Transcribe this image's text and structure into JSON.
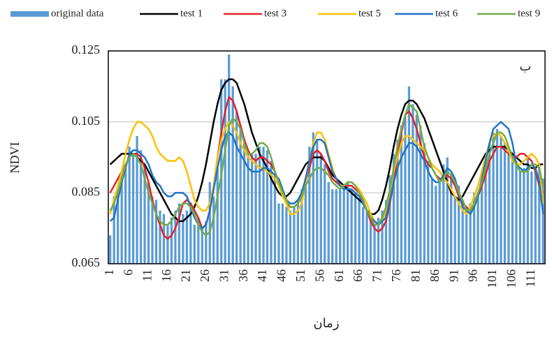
{
  "chart_data": {
    "type": "bar",
    "ylabel": "NDVI",
    "xlabel": "زمان",
    "annotation": "ب",
    "categories": [
      "1",
      null,
      null,
      null,
      null,
      "6",
      null,
      null,
      null,
      null,
      "11",
      null,
      null,
      null,
      null,
      "16",
      null,
      null,
      null,
      null,
      "21",
      null,
      null,
      null,
      null,
      "26",
      null,
      null,
      null,
      null,
      "31",
      null,
      null,
      null,
      null,
      "36",
      null,
      null,
      null,
      null,
      "41",
      null,
      null,
      null,
      null,
      "46",
      null,
      null,
      null,
      null,
      "51",
      null,
      null,
      null,
      null,
      "56",
      null,
      null,
      null,
      null,
      "61",
      null,
      null,
      null,
      null,
      "66",
      null,
      null,
      null,
      null,
      "71",
      null,
      null,
      null,
      null,
      "76",
      null,
      null,
      null,
      null,
      "81",
      null,
      null,
      null,
      null,
      "86",
      null,
      null,
      null,
      null,
      "91",
      null,
      null,
      null,
      null,
      "96",
      null,
      null,
      null,
      null,
      "101",
      null,
      null,
      null,
      null,
      "106",
      null,
      null,
      null,
      null,
      "111",
      null,
      null,
      null
    ],
    "ylim": [
      0.065,
      0.125
    ],
    "yticks": [
      0.065,
      0.085,
      0.105,
      0.125
    ],
    "grid": true,
    "legend": "top",
    "series": [
      {
        "name": "original data",
        "type": "bar",
        "color": "#5b9bd5",
        "values": [
          0.073,
          0.084,
          0.086,
          0.09,
          0.092,
          0.098,
          0.096,
          0.101,
          0.097,
          0.093,
          0.088,
          0.084,
          0.083,
          0.08,
          0.079,
          0.076,
          0.078,
          0.08,
          0.082,
          0.079,
          0.08,
          0.082,
          0.076,
          0.078,
          0.075,
          0.077,
          0.088,
          0.084,
          0.092,
          0.117,
          0.117,
          0.124,
          0.115,
          0.108,
          0.104,
          0.099,
          0.097,
          0.096,
          0.096,
          0.098,
          0.098,
          0.097,
          0.094,
          0.09,
          0.082,
          0.082,
          0.081,
          0.08,
          0.081,
          0.083,
          0.086,
          0.089,
          0.098,
          0.102,
          0.1,
          0.096,
          0.093,
          0.088,
          0.086,
          0.086,
          0.086,
          0.087,
          0.088,
          0.086,
          0.085,
          0.083,
          0.081,
          0.08,
          0.078,
          0.076,
          0.078,
          0.08,
          0.083,
          0.09,
          0.096,
          0.1,
          0.104,
          0.107,
          0.115,
          0.11,
          0.107,
          0.104,
          0.099,
          0.094,
          0.089,
          0.087,
          0.088,
          0.093,
          0.095,
          0.09,
          0.084,
          0.087,
          0.083,
          0.081,
          0.082,
          0.085,
          0.084,
          0.088,
          0.093,
          0.099,
          0.102,
          0.103,
          0.101,
          0.099,
          0.096,
          0.096,
          0.094,
          0.091,
          0.092,
          0.095,
          0.091,
          0.092,
          0.093,
          0.089
        ]
      },
      {
        "name": "test 1",
        "type": "line",
        "color": "#000000",
        "values": [
          0.093,
          0.094,
          0.095,
          0.096,
          0.096,
          0.096,
          0.096,
          0.095,
          0.094,
          0.093,
          0.091,
          0.089,
          0.087,
          0.085,
          0.083,
          0.081,
          0.079,
          0.078,
          0.077,
          0.077,
          0.078,
          0.079,
          0.081,
          0.084,
          0.088,
          0.093,
          0.099,
          0.105,
          0.11,
          0.114,
          0.116,
          0.117,
          0.117,
          0.116,
          0.113,
          0.11,
          0.106,
          0.102,
          0.099,
          0.096,
          0.094,
          0.092,
          0.089,
          0.087,
          0.085,
          0.084,
          0.084,
          0.085,
          0.087,
          0.089,
          0.091,
          0.093,
          0.094,
          0.095,
          0.095,
          0.095,
          0.094,
          0.092,
          0.09,
          0.089,
          0.088,
          0.087,
          0.086,
          0.085,
          0.084,
          0.083,
          0.082,
          0.08,
          0.079,
          0.079,
          0.08,
          0.083,
          0.087,
          0.092,
          0.098,
          0.103,
          0.107,
          0.11,
          0.111,
          0.111,
          0.11,
          0.108,
          0.106,
          0.103,
          0.1,
          0.097,
          0.094,
          0.091,
          0.088,
          0.085,
          0.084,
          0.083,
          0.084,
          0.086,
          0.088,
          0.09,
          0.092,
          0.094,
          0.096,
          0.097,
          0.098,
          0.098,
          0.098,
          0.098,
          0.097,
          0.096,
          0.095,
          0.094,
          0.093,
          0.093,
          0.092,
          0.092,
          0.093,
          0.093
        ]
      },
      {
        "name": "test 3",
        "type": "line",
        "color": "#e3222b",
        "values": [
          0.085,
          0.087,
          0.089,
          0.091,
          0.093,
          0.095,
          0.096,
          0.096,
          0.095,
          0.092,
          0.088,
          0.083,
          0.079,
          0.076,
          0.073,
          0.072,
          0.073,
          0.075,
          0.078,
          0.082,
          0.083,
          0.082,
          0.08,
          0.078,
          0.075,
          0.076,
          0.08,
          0.087,
          0.095,
          0.102,
          0.108,
          0.112,
          0.111,
          0.108,
          0.104,
          0.1,
          0.097,
          0.095,
          0.094,
          0.095,
          0.095,
          0.094,
          0.093,
          0.091,
          0.088,
          0.085,
          0.082,
          0.081,
          0.081,
          0.082,
          0.084,
          0.088,
          0.092,
          0.096,
          0.097,
          0.096,
          0.094,
          0.091,
          0.089,
          0.088,
          0.087,
          0.087,
          0.087,
          0.087,
          0.086,
          0.085,
          0.083,
          0.08,
          0.077,
          0.075,
          0.074,
          0.075,
          0.077,
          0.082,
          0.088,
          0.095,
          0.102,
          0.107,
          0.108,
          0.106,
          0.103,
          0.099,
          0.095,
          0.093,
          0.092,
          0.09,
          0.089,
          0.089,
          0.09,
          0.089,
          0.087,
          0.084,
          0.082,
          0.081,
          0.08,
          0.081,
          0.084,
          0.087,
          0.09,
          0.094,
          0.096,
          0.098,
          0.098,
          0.097,
          0.096,
          0.095,
          0.095,
          0.096,
          0.096,
          0.095,
          0.094,
          0.091,
          0.087,
          0.085
        ]
      },
      {
        "name": "test 5",
        "type": "line",
        "color": "#ffc000",
        "values": [
          0.079,
          0.083,
          0.087,
          0.091,
          0.096,
          0.1,
          0.103,
          0.105,
          0.105,
          0.104,
          0.103,
          0.101,
          0.098,
          0.096,
          0.095,
          0.094,
          0.094,
          0.094,
          0.095,
          0.094,
          0.091,
          0.087,
          0.083,
          0.081,
          0.08,
          0.08,
          0.082,
          0.087,
          0.095,
          0.1,
          0.103,
          0.105,
          0.104,
          0.102,
          0.099,
          0.097,
          0.095,
          0.094,
          0.093,
          0.092,
          0.092,
          0.091,
          0.09,
          0.089,
          0.087,
          0.084,
          0.082,
          0.079,
          0.079,
          0.08,
          0.082,
          0.088,
          0.094,
          0.099,
          0.102,
          0.102,
          0.1,
          0.096,
          0.092,
          0.089,
          0.087,
          0.087,
          0.088,
          0.088,
          0.087,
          0.086,
          0.084,
          0.082,
          0.079,
          0.077,
          0.076,
          0.077,
          0.08,
          0.085,
          0.091,
          0.095,
          0.099,
          0.101,
          0.101,
          0.1,
          0.099,
          0.098,
          0.097,
          0.095,
          0.093,
          0.092,
          0.091,
          0.089,
          0.088,
          0.086,
          0.084,
          0.082,
          0.08,
          0.079,
          0.081,
          0.084,
          0.087,
          0.091,
          0.095,
          0.099,
          0.101,
          0.102,
          0.101,
          0.099,
          0.097,
          0.094,
          0.093,
          0.093,
          0.094,
          0.095,
          0.096,
          0.095,
          0.093,
          0.082
        ]
      },
      {
        "name": "test 6",
        "type": "line",
        "color": "#2273c3",
        "values": [
          0.077,
          0.078,
          0.083,
          0.088,
          0.092,
          0.096,
          0.097,
          0.097,
          0.096,
          0.095,
          0.093,
          0.09,
          0.088,
          0.087,
          0.085,
          0.084,
          0.084,
          0.085,
          0.085,
          0.085,
          0.084,
          0.081,
          0.078,
          0.076,
          0.075,
          0.076,
          0.08,
          0.086,
          0.092,
          0.097,
          0.101,
          0.102,
          0.101,
          0.098,
          0.096,
          0.094,
          0.092,
          0.091,
          0.091,
          0.091,
          0.092,
          0.092,
          0.091,
          0.09,
          0.089,
          0.086,
          0.083,
          0.082,
          0.082,
          0.083,
          0.085,
          0.089,
          0.094,
          0.098,
          0.1,
          0.1,
          0.099,
          0.095,
          0.091,
          0.089,
          0.087,
          0.086,
          0.086,
          0.086,
          0.085,
          0.084,
          0.082,
          0.08,
          0.078,
          0.077,
          0.076,
          0.077,
          0.078,
          0.083,
          0.088,
          0.092,
          0.095,
          0.097,
          0.099,
          0.099,
          0.098,
          0.096,
          0.094,
          0.091,
          0.089,
          0.088,
          0.088,
          0.09,
          0.092,
          0.091,
          0.089,
          0.085,
          0.081,
          0.08,
          0.079,
          0.081,
          0.084,
          0.089,
          0.094,
          0.099,
          0.103,
          0.104,
          0.105,
          0.104,
          0.103,
          0.099,
          0.093,
          0.092,
          0.091,
          0.092,
          0.093,
          0.092,
          0.088,
          0.079
        ]
      },
      {
        "name": "test 9",
        "type": "line",
        "color": "#70ad47",
        "values": [
          0.08,
          0.082,
          0.085,
          0.089,
          0.093,
          0.095,
          0.096,
          0.095,
          0.093,
          0.089,
          0.085,
          0.082,
          0.079,
          0.077,
          0.076,
          0.076,
          0.077,
          0.079,
          0.081,
          0.082,
          0.082,
          0.081,
          0.079,
          0.076,
          0.074,
          0.073,
          0.074,
          0.078,
          0.084,
          0.09,
          0.097,
          0.104,
          0.106,
          0.105,
          0.103,
          0.099,
          0.096,
          0.096,
          0.097,
          0.099,
          0.099,
          0.098,
          0.095,
          0.091,
          0.088,
          0.085,
          0.083,
          0.081,
          0.081,
          0.082,
          0.084,
          0.087,
          0.089,
          0.091,
          0.092,
          0.092,
          0.091,
          0.09,
          0.088,
          0.087,
          0.086,
          0.087,
          0.088,
          0.088,
          0.087,
          0.085,
          0.083,
          0.08,
          0.078,
          0.076,
          0.076,
          0.078,
          0.081,
          0.086,
          0.092,
          0.098,
          0.103,
          0.107,
          0.11,
          0.109,
          0.108,
          0.103,
          0.098,
          0.095,
          0.092,
          0.09,
          0.088,
          0.089,
          0.091,
          0.09,
          0.088,
          0.085,
          0.083,
          0.08,
          0.08,
          0.082,
          0.085,
          0.088,
          0.092,
          0.096,
          0.099,
          0.102,
          0.102,
          0.101,
          0.098,
          0.095,
          0.093,
          0.091,
          0.091,
          0.091,
          0.093,
          0.093,
          0.092,
          0.087
        ]
      }
    ]
  }
}
